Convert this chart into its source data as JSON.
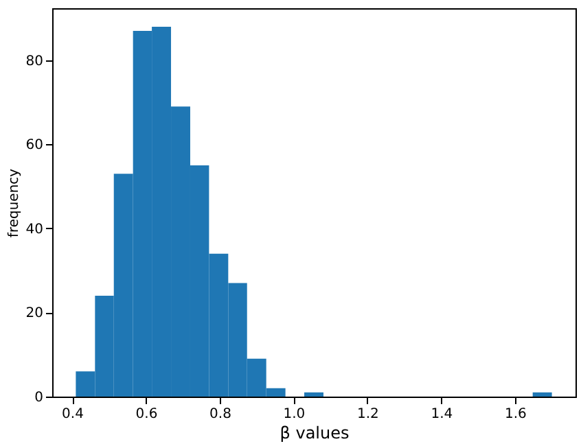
{
  "chart_data": {
    "type": "histogram",
    "xlabel": "β values",
    "ylabel": "frequency",
    "color": "#1f77b4",
    "bins": [
      0.41,
      0.462,
      0.513,
      0.565,
      0.616,
      0.668,
      0.72,
      0.771,
      0.823,
      0.874,
      0.926,
      0.978,
      1.029,
      1.081,
      1.648,
      1.7
    ],
    "values": [
      6,
      24,
      53,
      87,
      88,
      69,
      55,
      34,
      27,
      9,
      2,
      0,
      1,
      0,
      1
    ],
    "xlim": [
      0.346,
      1.764
    ],
    "xticks": [
      {
        "value": 0.4,
        "label": "0.4"
      },
      {
        "value": 0.6,
        "label": "0.6"
      },
      {
        "value": 0.8,
        "label": "0.8"
      },
      {
        "value": 1.0,
        "label": "1.0"
      },
      {
        "value": 1.2,
        "label": "1.2"
      },
      {
        "value": 1.4,
        "label": "1.4"
      },
      {
        "value": 1.6,
        "label": "1.6"
      }
    ],
    "ylim": [
      0,
      92.4
    ],
    "yticks": [
      0,
      20,
      40,
      60,
      80
    ],
    "grid": false
  }
}
